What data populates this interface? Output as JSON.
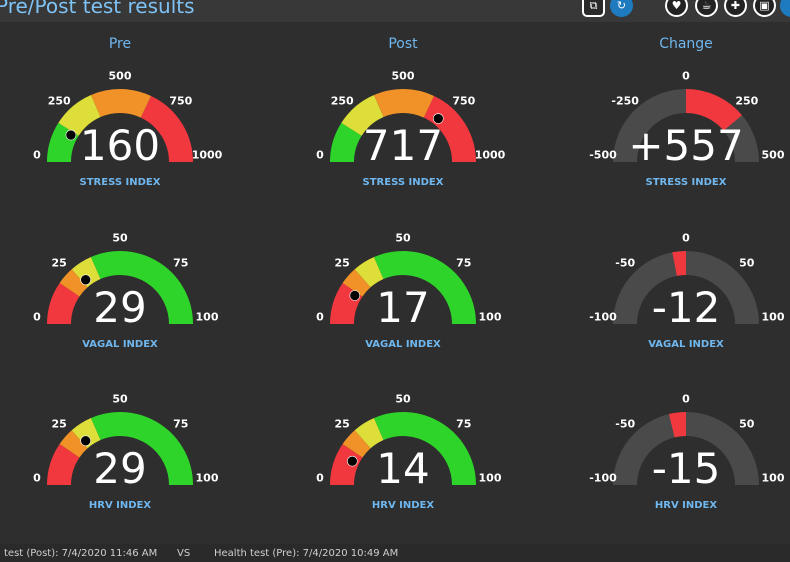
{
  "header": {
    "title": "Pre/Post test results",
    "toolbar_icons": [
      "copy-icon",
      "refresh-icon",
      "heart-icon",
      "cup-icon",
      "medkit-icon",
      "image-icon",
      "info-icon"
    ]
  },
  "columns": {
    "pre": "Pre",
    "post": "Post",
    "change": "Change"
  },
  "colors": {
    "red": "#f0383e",
    "orange": "#f09228",
    "yellow": "#dede3a",
    "green": "#2fd42a",
    "gray": "#4a4a4a",
    "label_blue": "#6fb7ee"
  },
  "gauges": {
    "stress_pre": {
      "label": "STRESS INDEX",
      "value": "160",
      "ticks": [
        "0",
        "250",
        "500",
        "750",
        "1000"
      ],
      "pointer_fraction": 0.16
    },
    "stress_post": {
      "label": "STRESS INDEX",
      "value": "717",
      "ticks": [
        "0",
        "250",
        "500",
        "750",
        "1000"
      ],
      "pointer_fraction": 0.717
    },
    "stress_change": {
      "label": "STRESS INDEX",
      "value": "+557",
      "ticks": [
        "-500",
        "-250",
        "0",
        "250",
        "500"
      ],
      "change_fraction": 0.557
    },
    "vagal_pre": {
      "label": "VAGAL INDEX",
      "value": "29",
      "ticks": [
        "0",
        "25",
        "50",
        "75",
        "100"
      ],
      "pointer_fraction": 0.29
    },
    "vagal_post": {
      "label": "VAGAL INDEX",
      "value": "17",
      "ticks": [
        "0",
        "25",
        "50",
        "75",
        "100"
      ],
      "pointer_fraction": 0.17
    },
    "vagal_change": {
      "label": "VAGAL INDEX",
      "value": "-12",
      "ticks": [
        "-100",
        "-50",
        "0",
        "50",
        "100"
      ],
      "change_fraction": -0.12
    },
    "hrv_pre": {
      "label": "HRV INDEX",
      "value": "29",
      "ticks": [
        "0",
        "25",
        "50",
        "75",
        "100"
      ],
      "pointer_fraction": 0.29
    },
    "hrv_post": {
      "label": "HRV INDEX",
      "value": "14",
      "ticks": [
        "0",
        "25",
        "50",
        "75",
        "100"
      ],
      "pointer_fraction": 0.14
    },
    "hrv_change": {
      "label": "HRV INDEX",
      "value": "-15",
      "ticks": [
        "-100",
        "-50",
        "0",
        "50",
        "100"
      ],
      "change_fraction": -0.15
    }
  },
  "footer": {
    "post_text": "test (Post):  7/4/2020 11:46 AM",
    "vs": "VS",
    "pre_text": "Health test (Pre):  7/4/2020 10:49 AM"
  }
}
